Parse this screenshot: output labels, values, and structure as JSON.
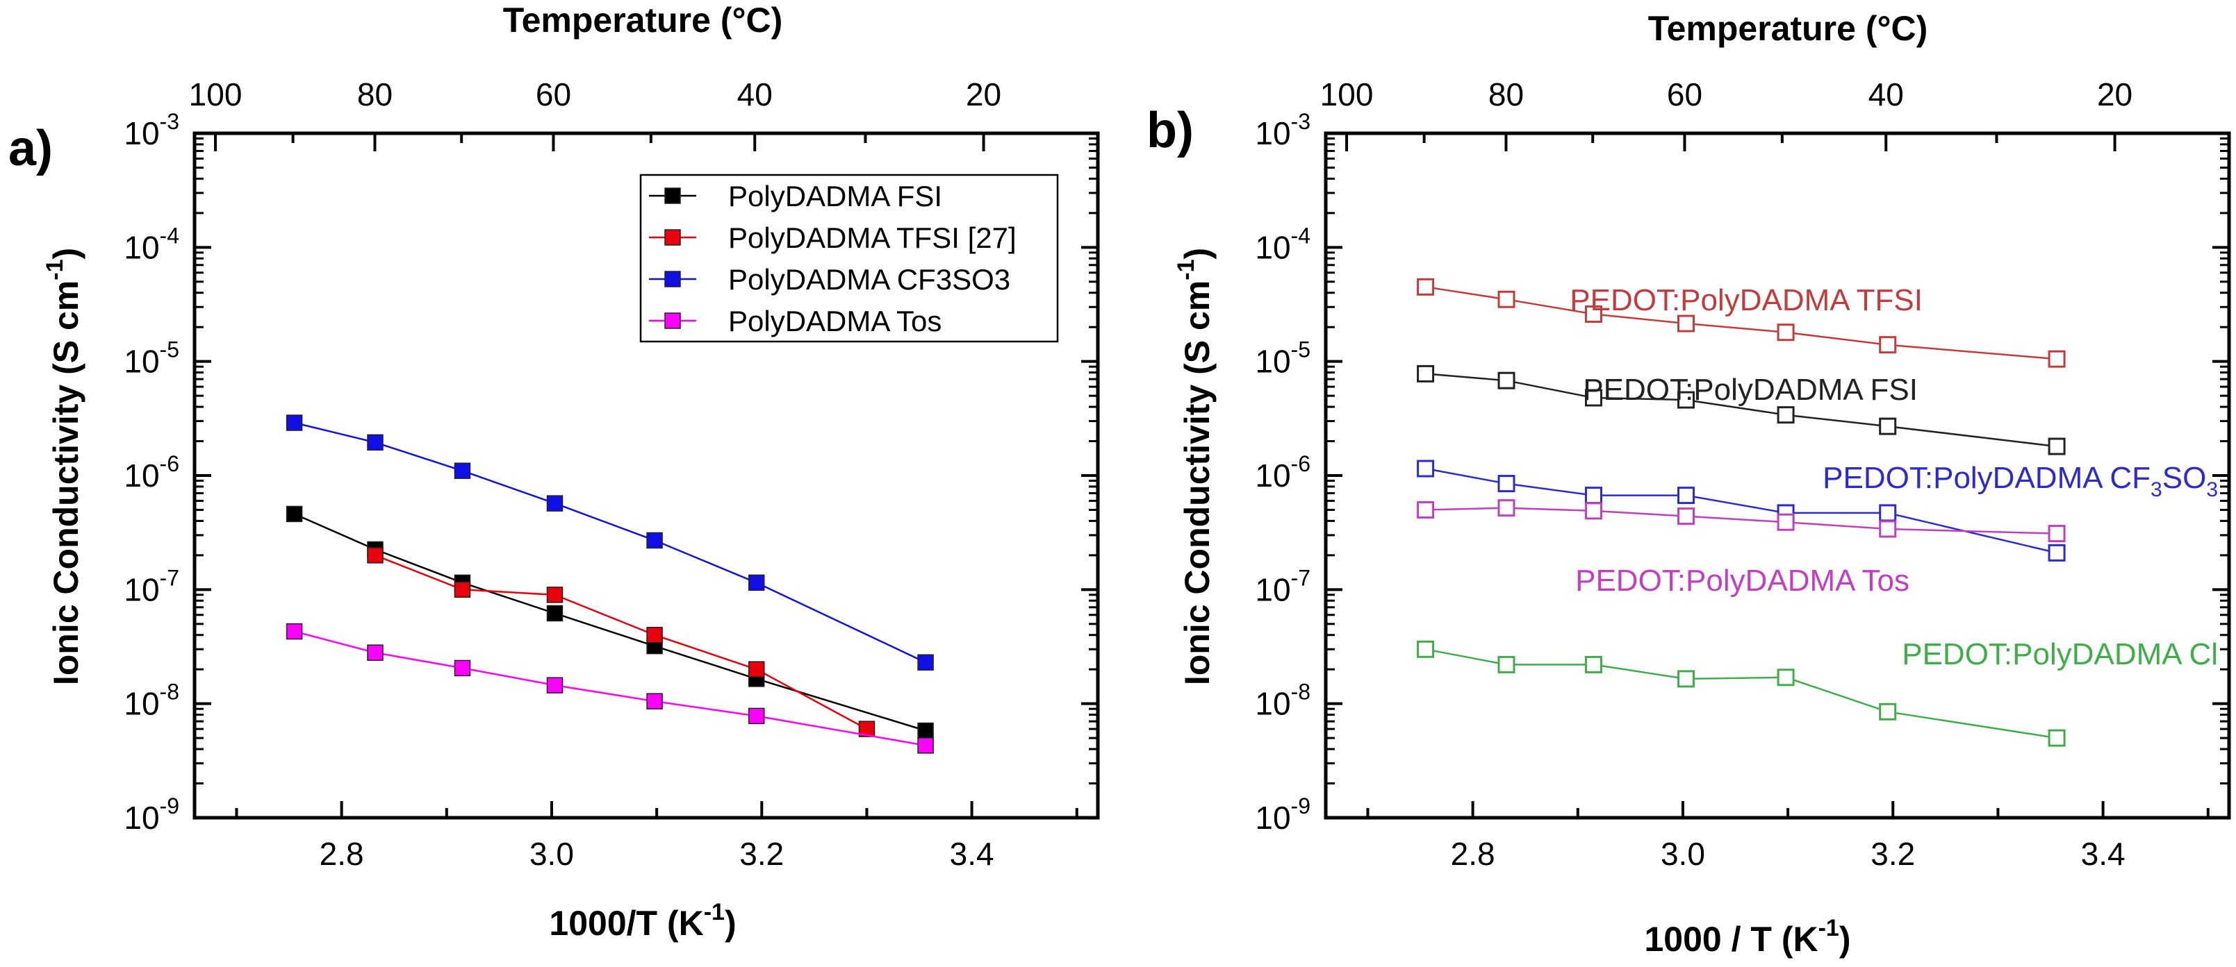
{
  "chart_data": [
    {
      "panel_label": "a)",
      "type": "line",
      "scale_y": "log",
      "xlabel": "1000/T (K",
      "xlabel_sup": "-1",
      "xlabel_end": ")",
      "ylabel": "Ionic Conductivity (S cm",
      "ylabel_sup": "-1",
      "ylabel_end": ")",
      "top_axis_label": "Temperature (°C)",
      "xlim": [
        2.66,
        3.52
      ],
      "ylim_exponent": [
        -9,
        -3
      ],
      "x_ticks": [
        2.8,
        3.0,
        3.2,
        3.4
      ],
      "x_tick_labels": [
        "2.8",
        "3.0",
        "3.2",
        "3.4"
      ],
      "y_tick_exponents": [
        -9,
        -8,
        -7,
        -6,
        -5,
        -4,
        -3
      ],
      "y_tick_labels": [
        {
          "base": "10",
          "exp": "-9"
        },
        {
          "base": "10",
          "exp": "-8"
        },
        {
          "base": "10",
          "exp": "-7"
        },
        {
          "base": "10",
          "exp": "-6"
        },
        {
          "base": "10",
          "exp": "-5"
        },
        {
          "base": "10",
          "exp": "-4"
        },
        {
          "base": "10",
          "exp": "-3"
        }
      ],
      "top_ticks_celsius": [
        100,
        80,
        60,
        40,
        20
      ],
      "top_tick_labels": [
        "100",
        "80",
        "60",
        "40",
        "20"
      ],
      "legend_position": "top-right",
      "marker_style": "filled-square",
      "series": [
        {
          "name": "PolyDADMA FSI",
          "color": "#000000",
          "x": [
            2.755,
            2.832,
            2.915,
            3.003,
            3.098,
            3.195,
            3.356
          ],
          "y": [
            4.6e-07,
            2.25e-07,
            1.15e-07,
            6.2e-08,
            3.2e-08,
            1.65e-08,
            5.8e-09
          ]
        },
        {
          "name": "PolyDADMA TFSI [27]",
          "color": "#e8000b",
          "x": [
            2.832,
            2.915,
            3.003,
            3.098,
            3.195,
            3.3
          ],
          "y": [
            2e-07,
            1e-07,
            9e-08,
            4e-08,
            2e-08,
            6e-09
          ]
        },
        {
          "name": "PolyDADMA CF3SO3",
          "color": "#1010e6",
          "x": [
            2.755,
            2.832,
            2.915,
            3.003,
            3.098,
            3.195,
            3.356
          ],
          "y": [
            2.9e-06,
            1.95e-06,
            1.1e-06,
            5.7e-07,
            2.7e-07,
            1.15e-07,
            2.3e-08
          ]
        },
        {
          "name": "PolyDADMA Tos",
          "color": "#f0f",
          "x": [
            2.755,
            2.832,
            2.915,
            3.003,
            3.098,
            3.195,
            3.356
          ],
          "y": [
            4.3e-08,
            2.8e-08,
            2.05e-08,
            1.45e-08,
            1.05e-08,
            7.8e-09,
            4.3e-09
          ]
        }
      ]
    },
    {
      "panel_label": "b)",
      "type": "line",
      "scale_y": "log",
      "xlabel": "1000 / T (K",
      "xlabel_sup": "-1",
      "xlabel_end": ")",
      "ylabel": "Ionic Conductivity (S cm",
      "ylabel_sup": "-1",
      "ylabel_end": ")",
      "top_axis_label": "Temperature (°C)",
      "xlim": [
        2.66,
        3.52
      ],
      "ylim_exponent": [
        -9,
        -3
      ],
      "x_ticks": [
        2.8,
        3.0,
        3.2,
        3.4
      ],
      "x_tick_labels": [
        "2.8",
        "3.0",
        "3.2",
        "3.4"
      ],
      "y_tick_exponents": [
        -9,
        -8,
        -7,
        -6,
        -5,
        -4,
        -3
      ],
      "y_tick_labels": [
        {
          "base": "10",
          "exp": "-9"
        },
        {
          "base": "10",
          "exp": "-8"
        },
        {
          "base": "10",
          "exp": "-7"
        },
        {
          "base": "10",
          "exp": "-6"
        },
        {
          "base": "10",
          "exp": "-5"
        },
        {
          "base": "10",
          "exp": "-4"
        },
        {
          "base": "10",
          "exp": "-3"
        }
      ],
      "top_ticks_celsius": [
        100,
        80,
        60,
        40,
        20
      ],
      "top_tick_labels": [
        "100",
        "80",
        "60",
        "40",
        "20"
      ],
      "marker_style": "open-square",
      "series": [
        {
          "name": "PEDOT:PolyDADMA TFSI",
          "label_parts": [
            {
              "t": "PEDOT:PolyDADMA TFSI"
            }
          ],
          "color": "#c43b3b",
          "x": [
            2.755,
            2.832,
            2.915,
            3.003,
            3.098,
            3.195,
            3.356
          ],
          "y": [
            4.5e-05,
            3.5e-05,
            2.6e-05,
            2.15e-05,
            1.8e-05,
            1.4e-05,
            1.05e-05
          ]
        },
        {
          "name": "PEDOT:PolyDADMA FSI",
          "label_parts": [
            {
              "t": "PEDOT:PolyDADMA FSI"
            }
          ],
          "color": "#222222",
          "x": [
            2.755,
            2.832,
            2.915,
            3.003,
            3.098,
            3.195,
            3.356
          ],
          "y": [
            7.8e-06,
            6.8e-06,
            4.8e-06,
            4.6e-06,
            3.4e-06,
            2.7e-06,
            1.8e-06
          ]
        },
        {
          "name": "PEDOT:PolyDADMA CF3SO3",
          "label_parts": [
            {
              "t": "PEDOT:PolyDADMA CF"
            },
            {
              "t": "3",
              "sub": true
            },
            {
              "t": "SO"
            },
            {
              "t": "3",
              "sub": true
            }
          ],
          "color": "#2b2bd0",
          "x": [
            2.755,
            2.832,
            2.915,
            3.003,
            3.098,
            3.195,
            3.356
          ],
          "y": [
            1.15e-06,
            8.5e-07,
            6.7e-07,
            6.7e-07,
            4.7e-07,
            4.7e-07,
            2.1e-07
          ]
        },
        {
          "name": "PEDOT:PolyDADMA Tos",
          "label_parts": [
            {
              "t": "PEDOT:PolyDADMA Tos"
            }
          ],
          "color": "#c23ec2",
          "x": [
            2.755,
            2.832,
            2.915,
            3.003,
            3.098,
            3.195,
            3.356
          ],
          "y": [
            5e-07,
            5.2e-07,
            4.9e-07,
            4.4e-07,
            3.9e-07,
            3.4e-07,
            3.1e-07
          ]
        },
        {
          "name": "PEDOT:PolyDADMA Cl",
          "label_parts": [
            {
              "t": "PEDOT:PolyDADMA Cl"
            }
          ],
          "color": "#3fae49",
          "x": [
            2.755,
            2.832,
            2.915,
            3.003,
            3.098,
            3.195,
            3.356
          ],
          "y": [
            3e-08,
            2.2e-08,
            2.2e-08,
            1.65e-08,
            1.7e-08,
            8.5e-09,
            5e-09
          ]
        }
      ]
    }
  ]
}
